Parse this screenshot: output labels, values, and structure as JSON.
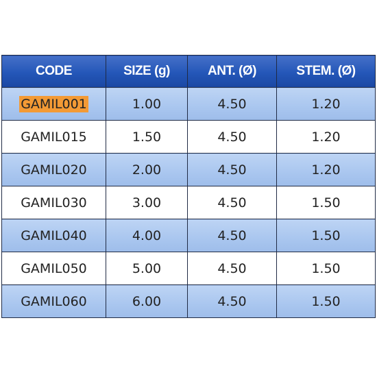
{
  "table": {
    "headers": [
      "CODE",
      "SIZE (g)",
      "ANT. (Ø)",
      "STEM. (Ø)"
    ],
    "rows": [
      [
        "GAMIL001",
        "1.00",
        "4.50",
        "1.20"
      ],
      [
        "GAMIL015",
        "1.50",
        "4.50",
        "1.20"
      ],
      [
        "GAMIL020",
        "2.00",
        "4.50",
        "1.20"
      ],
      [
        "GAMIL030",
        "3.00",
        "4.50",
        "1.50"
      ],
      [
        "GAMIL040",
        "4.00",
        "4.50",
        "1.50"
      ],
      [
        "GAMIL050",
        "5.00",
        "4.50",
        "1.50"
      ],
      [
        "GAMIL060",
        "6.00",
        "4.50",
        "1.50"
      ]
    ],
    "highlighted_code": "GAMIL001"
  },
  "colors": {
    "header_bg": "#2456b8",
    "header_text": "#ffffff",
    "shaded_row_bg": "#a9c6ef",
    "plain_row_bg": "#ffffff",
    "highlight_bg": "#f39a35",
    "border": "#1f2a44"
  }
}
